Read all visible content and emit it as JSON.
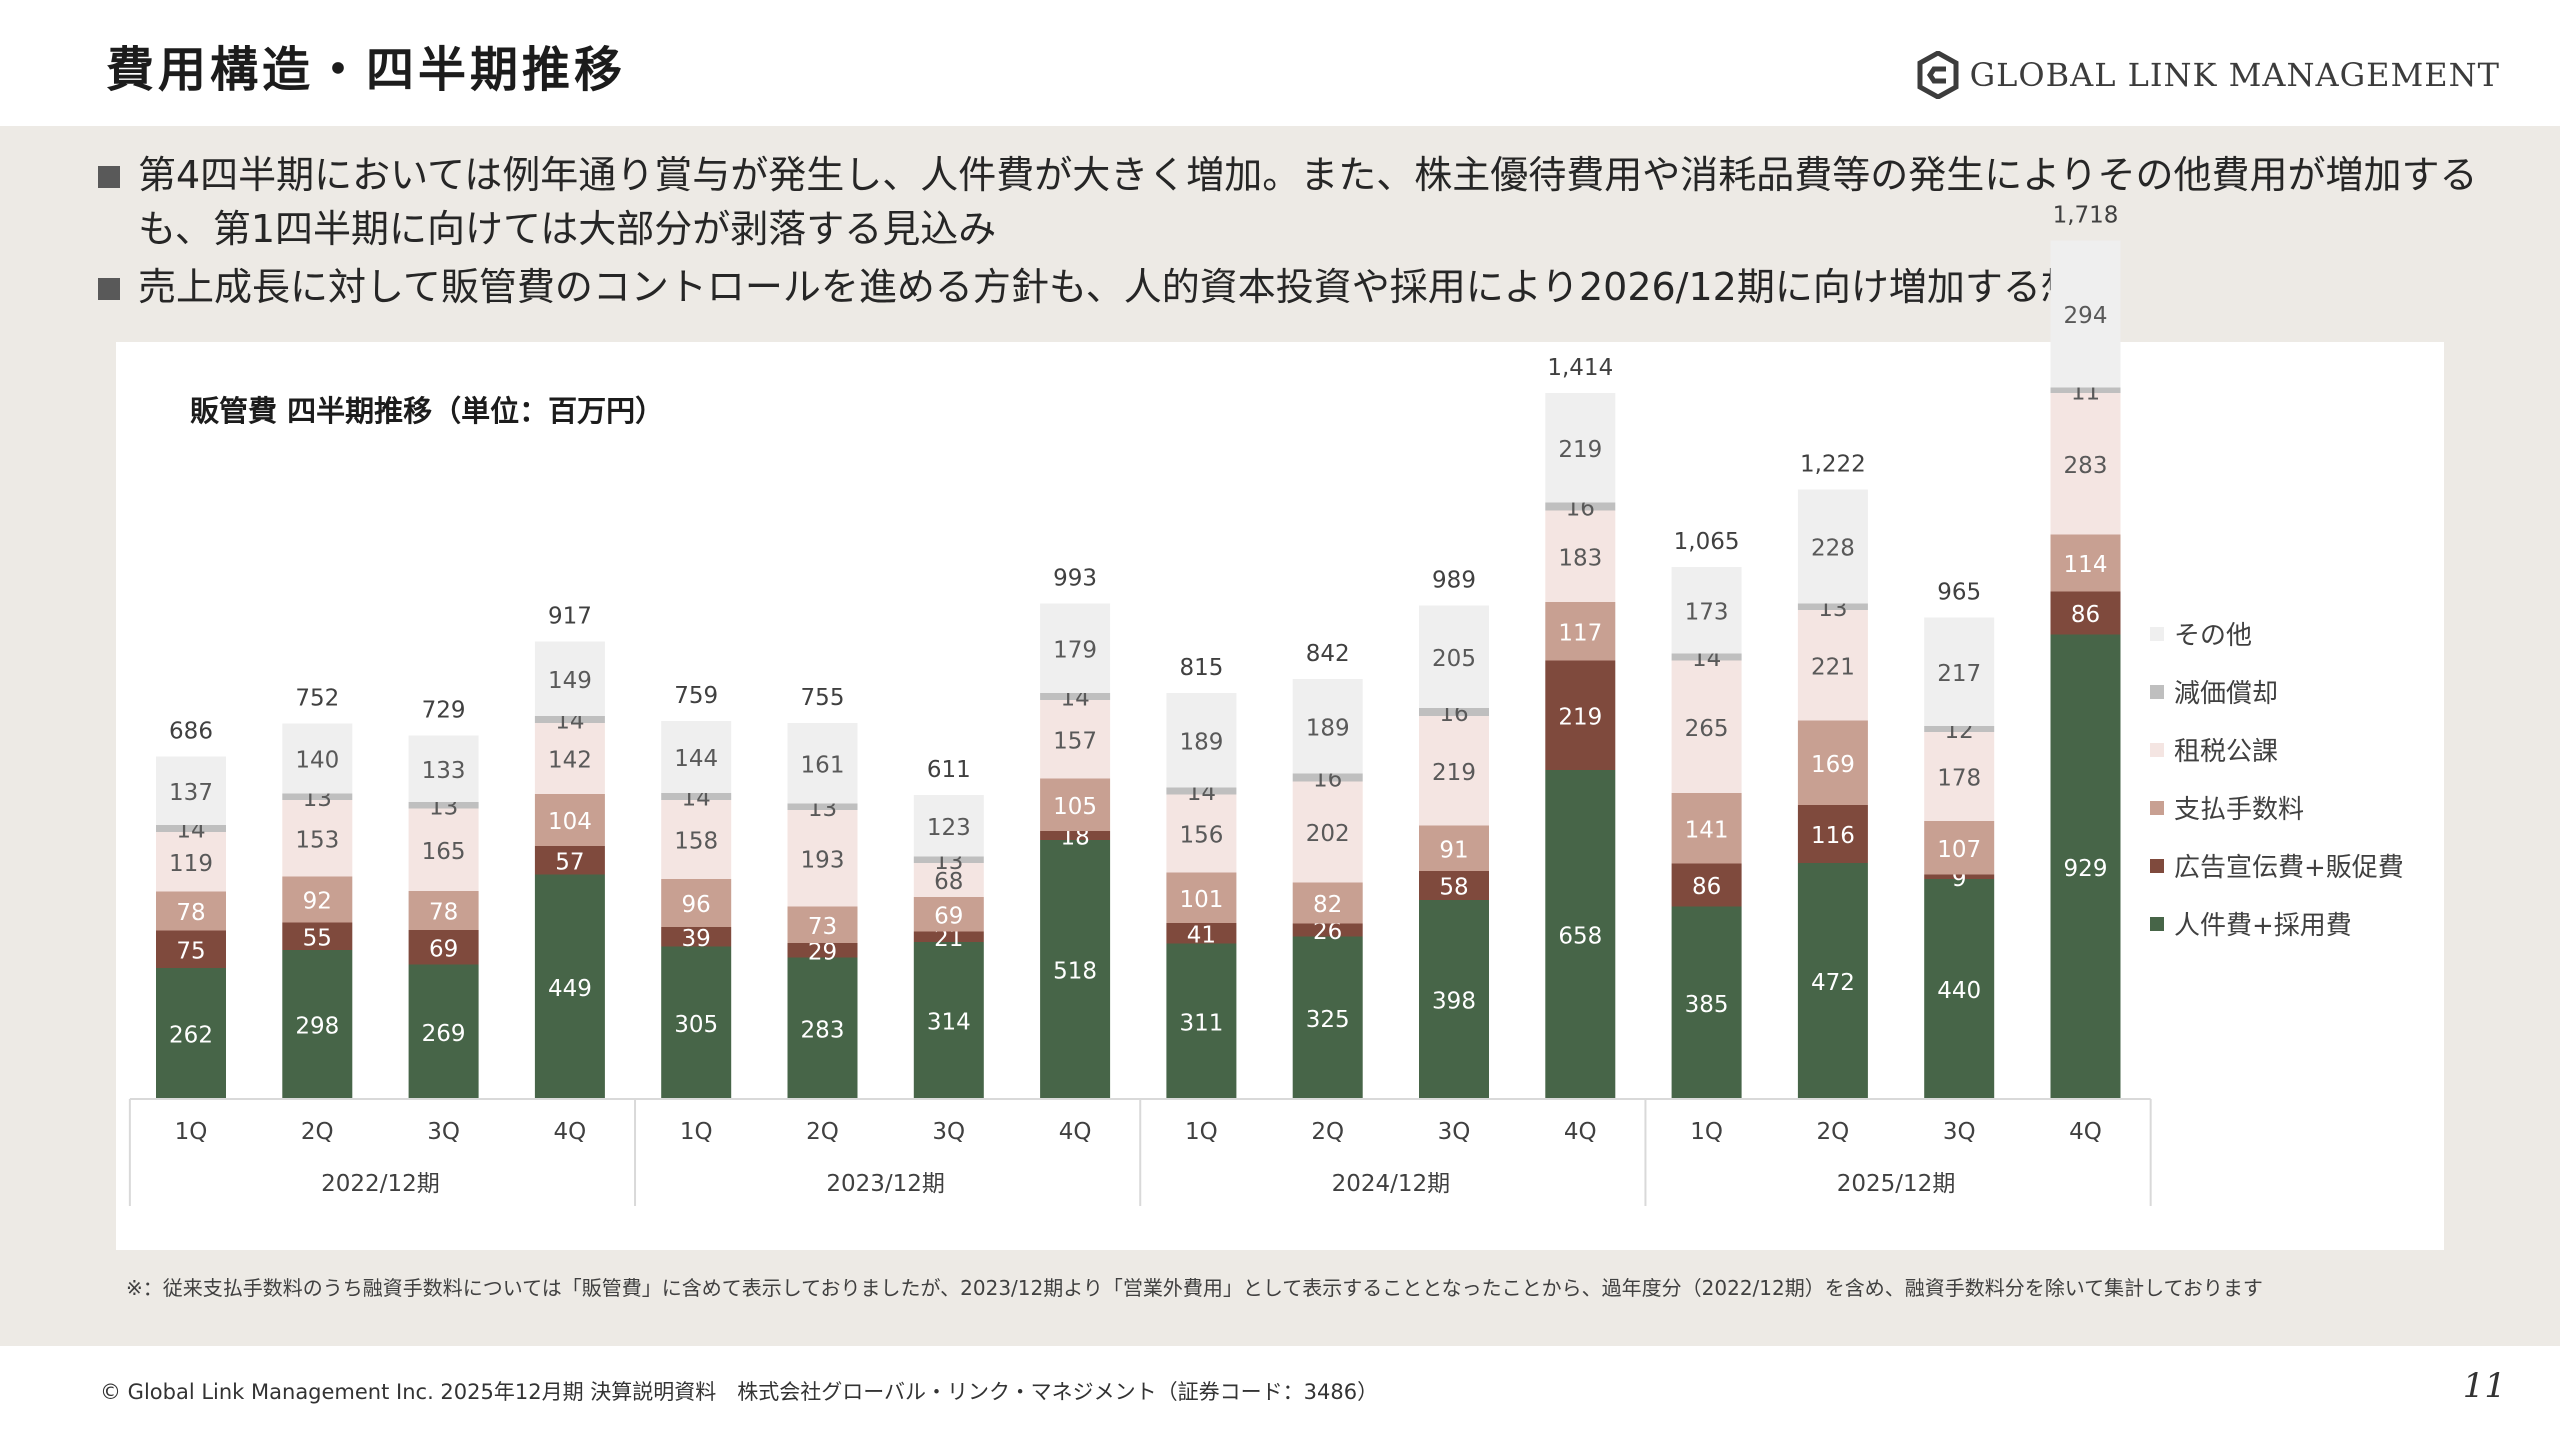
{
  "page": {
    "title": "費用構造・四半期推移",
    "logo_text": "GLOBAL LINK MANAGEMENT",
    "bullets": [
      "第4四半期においては例年通り賞与が発生し、人件費が大きく増加。また、株主優待費用や消耗品費等の発生によりその他費用が増加するも、第1四半期に向けては大部分が剥落する見込み",
      "売上成長に対して販管費のコントロールを進める方針も、人的資本投資や採用により2026/12期に向け増加する想定"
    ],
    "footnote": "※：従来支払手数料のうち融資手数料については「販管費」に含めて表示しておりましたが、2023/12期より「営業外費用」として表示することとなったことから、過年度分（2022/12期）を含め、融資手数料分を除いて集計しております",
    "footer": "© Global Link Management Inc. 2025年12月期 決算説明資料　株式会社グローバル・リンク・マネジメント（証券コード：3486）",
    "page_number": "11"
  },
  "chart_data": {
    "type": "bar",
    "stacked": true,
    "title": "販管費 四半期推移（単位：百万円）",
    "categories": [
      "1Q",
      "2Q",
      "3Q",
      "4Q",
      "1Q",
      "2Q",
      "3Q",
      "4Q",
      "1Q",
      "2Q",
      "3Q",
      "4Q",
      "1Q",
      "2Q",
      "3Q",
      "4Q"
    ],
    "groups": [
      {
        "label": "2022/12期",
        "span": 4
      },
      {
        "label": "2023/12期",
        "span": 4
      },
      {
        "label": "2024/12期",
        "span": 4
      },
      {
        "label": "2025/12期",
        "span": 4
      }
    ],
    "totals": [
      686,
      752,
      729,
      917,
      759,
      755,
      611,
      993,
      815,
      842,
      989,
      1414,
      1065,
      1222,
      965,
      1718
    ],
    "total_labels": [
      "686",
      "752",
      "729",
      "917",
      "759",
      "755",
      "611",
      "993",
      "815",
      "842",
      "989",
      "1,414",
      "1,065",
      "1,222",
      "965",
      "1,718"
    ],
    "series": [
      {
        "name": "人件費+採用費",
        "color": "#476548",
        "label_color": "#ffffff",
        "values": [
          262,
          298,
          269,
          449,
          305,
          283,
          314,
          518,
          311,
          325,
          398,
          658,
          385,
          472,
          440,
          929
        ]
      },
      {
        "name": "広告宣伝費+販促費",
        "color": "#7f4a3d",
        "label_color": "#ffffff",
        "values": [
          75,
          55,
          69,
          57,
          39,
          29,
          21,
          18,
          41,
          26,
          58,
          219,
          86,
          116,
          9,
          86
        ]
      },
      {
        "name": "支払手数料",
        "color": "#c8a092",
        "label_color": "#ffffff",
        "values": [
          78,
          92,
          78,
          104,
          96,
          73,
          69,
          105,
          101,
          82,
          91,
          117,
          141,
          169,
          107,
          114
        ]
      },
      {
        "name": "租税公課",
        "color": "#f4e5e2",
        "label_color": "#595959",
        "values": [
          119,
          153,
          165,
          142,
          158,
          193,
          68,
          157,
          156,
          202,
          219,
          183,
          265,
          221,
          178,
          283
        ]
      },
      {
        "name": "減価償却",
        "color": "#bfbfbf",
        "label_color": "#595959",
        "values": [
          14,
          13,
          13,
          14,
          14,
          13,
          13,
          14,
          14,
          16,
          16,
          16,
          14,
          13,
          12,
          11
        ]
      },
      {
        "name": "その他",
        "color": "#efefef",
        "label_color": "#595959",
        "values": [
          137,
          140,
          133,
          149,
          144,
          161,
          123,
          179,
          189,
          189,
          205,
          219,
          173,
          228,
          217,
          294
        ]
      }
    ],
    "legend_position": "right",
    "legend_order": [
      "その他",
      "減価償却",
      "租税公課",
      "支払手数料",
      "広告宣伝費+販促費",
      "人件費+採用費"
    ],
    "grid": false
  }
}
